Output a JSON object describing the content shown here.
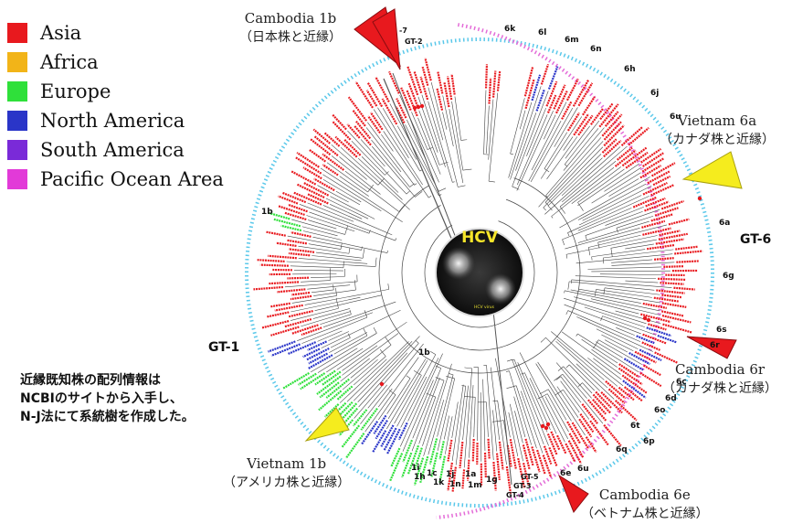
{
  "legend": {
    "items": [
      {
        "label": "Asia",
        "color": "#e8191e"
      },
      {
        "label": "Africa",
        "color": "#f2b418"
      },
      {
        "label": "Europe",
        "color": "#2fe03a"
      },
      {
        "label": "North America",
        "color": "#2a35c8"
      },
      {
        "label": "South America",
        "color": "#7a2ad8"
      },
      {
        "label": "Pacific Ocean Area",
        "color": "#e23ad8"
      }
    ]
  },
  "note": {
    "line1": "近縁既知株の配列情報は",
    "line2": "NCBIのサイトから入手し、",
    "line3": "N-J法にて系統樹を作成した。"
  },
  "center": {
    "label": "HCV",
    "caption": "HCV virus"
  },
  "callouts": {
    "cambodia_1b": {
      "name": "Cambodia 1b",
      "sub": "（日本株と近縁）"
    },
    "vietnam_6a": {
      "name": "Vietnam 6a",
      "sub": "（カナダ株と近縁）"
    },
    "cambodia_6r": {
      "name": "Cambodia 6r",
      "sub": "（カナダ株と近縁）"
    },
    "cambodia_6e": {
      "name": "Cambodia 6e",
      "sub": "（ベトナム株と近縁）"
    },
    "vietnam_1b": {
      "name": "Vietnam 1b",
      "sub": "（アメリカ株と近縁）"
    }
  },
  "genotypes": {
    "gt1": "GT-1",
    "gt2": "GT-2",
    "gt3": "GT-3",
    "gt4": "GT-4",
    "gt5": "GT-5",
    "gt6": "GT-6",
    "gt7": "-7"
  },
  "subtypes": {
    "s1b_outer": "1b",
    "s1b_inner": "1b",
    "s1i": "1i",
    "s1h": "1h",
    "s1c": "1c",
    "s1k": "1k",
    "s1j": "1j",
    "s1n": "1n",
    "s1a": "1a",
    "s1m": "1m",
    "s1g": "1g",
    "s6k": "6k",
    "s6l": "6l",
    "s6m": "6m",
    "s6n": "6n",
    "s6h": "6h",
    "s6j": "6j",
    "s6u_top": "6u",
    "s6a": "6a",
    "s6g": "6g",
    "s6s": "6s",
    "s6r": "6r",
    "s6c": "6c",
    "s6d": "6d",
    "s6o": "6o",
    "s6t": "6t",
    "s6p": "6p",
    "s6q": "6q",
    "s6u_bot": "6u",
    "s6e": "6e"
  },
  "arcs": {
    "inner_color": "#5ac8ea",
    "outer_color": "#e46cd8"
  }
}
